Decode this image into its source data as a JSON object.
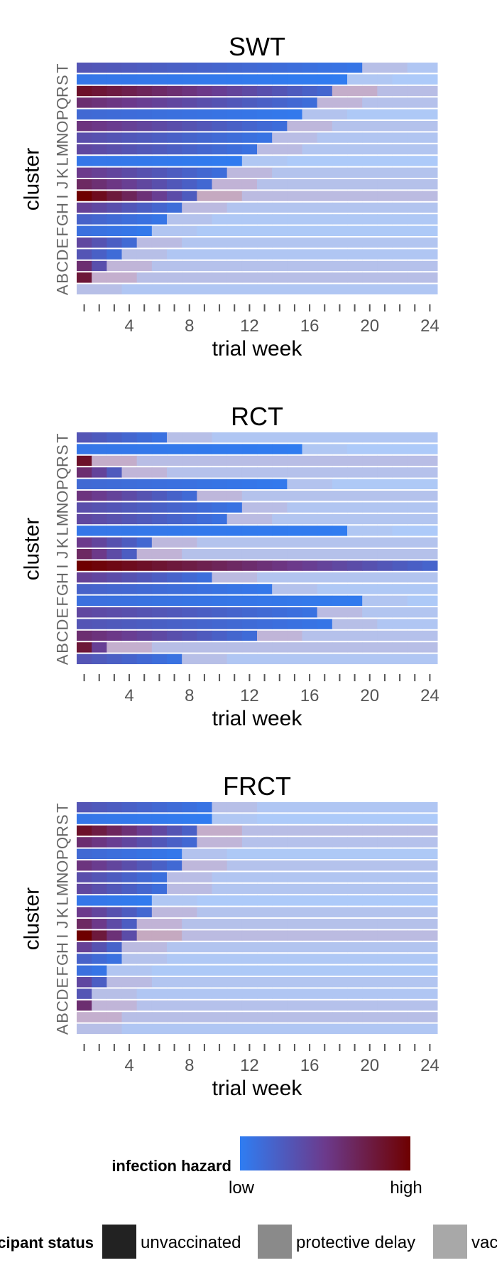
{
  "chart_data": [
    {
      "type": "heatmap",
      "title": "SWT",
      "xlabel": "trial week",
      "ylabel": "cluster",
      "xlim": [
        0,
        24
      ],
      "x_ticks": [
        4,
        8,
        12,
        16,
        20,
        24
      ],
      "clusters": [
        "A",
        "B",
        "C",
        "D",
        "E",
        "F",
        "G",
        "H",
        "I",
        "J",
        "K",
        "L",
        "M",
        "N",
        "O",
        "P",
        "Q",
        "R",
        "S",
        "T"
      ],
      "rows": [
        {
          "cluster": "T",
          "start_hazard": 0.3,
          "vacc_week": 19,
          "delay_end": 22
        },
        {
          "cluster": "S",
          "start_hazard": 0.05,
          "vacc_week": 18,
          "delay_end": 21
        },
        {
          "cluster": "R",
          "start_hazard": 0.85,
          "vacc_week": 17,
          "delay_end": 20
        },
        {
          "cluster": "Q",
          "start_hazard": 0.6,
          "vacc_week": 16,
          "delay_end": 19
        },
        {
          "cluster": "P",
          "start_hazard": 0.15,
          "vacc_week": 15,
          "delay_end": 18
        },
        {
          "cluster": "O",
          "start_hazard": 0.55,
          "vacc_week": 14,
          "delay_end": 17
        },
        {
          "cluster": "N",
          "start_hazard": 0.35,
          "vacc_week": 13,
          "delay_end": 16
        },
        {
          "cluster": "M",
          "start_hazard": 0.4,
          "vacc_week": 12,
          "delay_end": 15
        },
        {
          "cluster": "L",
          "start_hazard": 0.05,
          "vacc_week": 11,
          "delay_end": 14
        },
        {
          "cluster": "K",
          "start_hazard": 0.5,
          "vacc_week": 10,
          "delay_end": 13
        },
        {
          "cluster": "J",
          "start_hazard": 0.65,
          "vacc_week": 9,
          "delay_end": 12
        },
        {
          "cluster": "I",
          "start_hazard": 1.0,
          "vacc_week": 8,
          "delay_end": 11
        },
        {
          "cluster": "H",
          "start_hazard": 0.45,
          "vacc_week": 7,
          "delay_end": 10
        },
        {
          "cluster": "G",
          "start_hazard": 0.2,
          "vacc_week": 6,
          "delay_end": 9
        },
        {
          "cluster": "F",
          "start_hazard": 0.1,
          "vacc_week": 5,
          "delay_end": 8
        },
        {
          "cluster": "E",
          "start_hazard": 0.4,
          "vacc_week": 4,
          "delay_end": 7
        },
        {
          "cluster": "D",
          "start_hazard": 0.3,
          "vacc_week": 3,
          "delay_end": 6
        },
        {
          "cluster": "C",
          "start_hazard": 0.6,
          "vacc_week": 2,
          "delay_end": 5
        },
        {
          "cluster": "B",
          "start_hazard": 0.8,
          "vacc_week": 1,
          "delay_end": 4
        },
        {
          "cluster": "A",
          "start_hazard": 0.3,
          "vacc_week": 0,
          "delay_end": 3
        }
      ]
    },
    {
      "type": "heatmap",
      "title": "RCT",
      "xlabel": "trial week",
      "ylabel": "cluster",
      "xlim": [
        0,
        24
      ],
      "x_ticks": [
        4,
        8,
        12,
        16,
        20,
        24
      ],
      "clusters": [
        "A",
        "B",
        "C",
        "D",
        "E",
        "F",
        "G",
        "H",
        "I",
        "J",
        "K",
        "L",
        "M",
        "N",
        "O",
        "P",
        "Q",
        "R",
        "S",
        "T"
      ],
      "rows": [
        {
          "cluster": "T",
          "start_hazard": 0.3,
          "vacc_week": 6,
          "delay_end": 9
        },
        {
          "cluster": "S",
          "start_hazard": 0.05,
          "vacc_week": 15,
          "delay_end": 18
        },
        {
          "cluster": "R",
          "start_hazard": 0.85,
          "vacc_week": 1,
          "delay_end": 4
        },
        {
          "cluster": "Q",
          "start_hazard": 0.6,
          "vacc_week": 3,
          "delay_end": 6
        },
        {
          "cluster": "P",
          "start_hazard": 0.15,
          "vacc_week": 14,
          "delay_end": 17
        },
        {
          "cluster": "O",
          "start_hazard": 0.55,
          "vacc_week": 8,
          "delay_end": 11
        },
        {
          "cluster": "N",
          "start_hazard": 0.35,
          "vacc_week": 11,
          "delay_end": 14
        },
        {
          "cluster": "M",
          "start_hazard": 0.4,
          "vacc_week": 10,
          "delay_end": 13
        },
        {
          "cluster": "L",
          "start_hazard": 0.05,
          "vacc_week": 18,
          "delay_end": 21
        },
        {
          "cluster": "K",
          "start_hazard": 0.5,
          "vacc_week": 5,
          "delay_end": 8
        },
        {
          "cluster": "J",
          "start_hazard": 0.65,
          "vacc_week": 4,
          "delay_end": 7
        },
        {
          "cluster": "I",
          "start_hazard": 1.0,
          "vacc_week": 24,
          "delay_end": 24
        },
        {
          "cluster": "H",
          "start_hazard": 0.45,
          "vacc_week": 9,
          "delay_end": 12
        },
        {
          "cluster": "G",
          "start_hazard": 0.2,
          "vacc_week": 13,
          "delay_end": 16
        },
        {
          "cluster": "F",
          "start_hazard": 0.1,
          "vacc_week": 19,
          "delay_end": 22
        },
        {
          "cluster": "E",
          "start_hazard": 0.4,
          "vacc_week": 16,
          "delay_end": 19
        },
        {
          "cluster": "D",
          "start_hazard": 0.3,
          "vacc_week": 17,
          "delay_end": 20
        },
        {
          "cluster": "C",
          "start_hazard": 0.6,
          "vacc_week": 12,
          "delay_end": 15
        },
        {
          "cluster": "B",
          "start_hazard": 0.8,
          "vacc_week": 2,
          "delay_end": 5
        },
        {
          "cluster": "A",
          "start_hazard": 0.3,
          "vacc_week": 7,
          "delay_end": 10
        }
      ]
    },
    {
      "type": "heatmap",
      "title": "FRCT",
      "xlabel": "trial week",
      "ylabel": "cluster",
      "xlim": [
        0,
        24
      ],
      "x_ticks": [
        4,
        8,
        12,
        16,
        20,
        24
      ],
      "clusters": [
        "A",
        "B",
        "C",
        "D",
        "E",
        "F",
        "G",
        "H",
        "I",
        "J",
        "K",
        "L",
        "M",
        "N",
        "O",
        "P",
        "Q",
        "R",
        "S",
        "T"
      ],
      "rows": [
        {
          "cluster": "T",
          "start_hazard": 0.3,
          "vacc_week": 9,
          "delay_end": 12
        },
        {
          "cluster": "S",
          "start_hazard": 0.05,
          "vacc_week": 9,
          "delay_end": 12
        },
        {
          "cluster": "R",
          "start_hazard": 0.85,
          "vacc_week": 8,
          "delay_end": 11
        },
        {
          "cluster": "Q",
          "start_hazard": 0.6,
          "vacc_week": 8,
          "delay_end": 11
        },
        {
          "cluster": "P",
          "start_hazard": 0.15,
          "vacc_week": 7,
          "delay_end": 10
        },
        {
          "cluster": "O",
          "start_hazard": 0.55,
          "vacc_week": 7,
          "delay_end": 10
        },
        {
          "cluster": "N",
          "start_hazard": 0.35,
          "vacc_week": 6,
          "delay_end": 9
        },
        {
          "cluster": "M",
          "start_hazard": 0.4,
          "vacc_week": 6,
          "delay_end": 9
        },
        {
          "cluster": "L",
          "start_hazard": 0.05,
          "vacc_week": 5,
          "delay_end": 8
        },
        {
          "cluster": "K",
          "start_hazard": 0.5,
          "vacc_week": 5,
          "delay_end": 8
        },
        {
          "cluster": "J",
          "start_hazard": 0.65,
          "vacc_week": 4,
          "delay_end": 7
        },
        {
          "cluster": "I",
          "start_hazard": 1.0,
          "vacc_week": 4,
          "delay_end": 7
        },
        {
          "cluster": "H",
          "start_hazard": 0.45,
          "vacc_week": 3,
          "delay_end": 6
        },
        {
          "cluster": "G",
          "start_hazard": 0.2,
          "vacc_week": 3,
          "delay_end": 6
        },
        {
          "cluster": "F",
          "start_hazard": 0.1,
          "vacc_week": 2,
          "delay_end": 5
        },
        {
          "cluster": "E",
          "start_hazard": 0.4,
          "vacc_week": 2,
          "delay_end": 5
        },
        {
          "cluster": "D",
          "start_hazard": 0.3,
          "vacc_week": 1,
          "delay_end": 4
        },
        {
          "cluster": "C",
          "start_hazard": 0.6,
          "vacc_week": 1,
          "delay_end": 4
        },
        {
          "cluster": "B",
          "start_hazard": 0.8,
          "vacc_week": 0,
          "delay_end": 3
        },
        {
          "cluster": "A",
          "start_hazard": 0.3,
          "vacc_week": 0,
          "delay_end": 3
        }
      ]
    }
  ],
  "hazard_legend": {
    "title": "infection hazard",
    "low_label": "low",
    "high_label": "high",
    "low_color": "#2f7df2",
    "high_color": "#6e0000"
  },
  "status_legend": {
    "title": "participant status",
    "items": [
      {
        "label": "unvaccinated",
        "color": "#222222"
      },
      {
        "label": "protective delay",
        "color": "#8a8a8a"
      },
      {
        "label": "vaccinated",
        "color": "#a8a8a8"
      }
    ]
  }
}
